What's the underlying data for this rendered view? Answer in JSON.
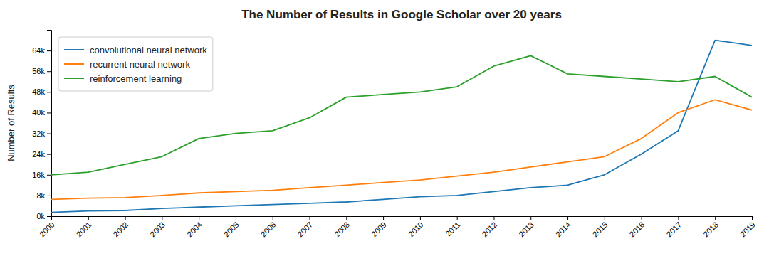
{
  "chart_data": {
    "type": "line",
    "title": "The Number of Results in Google Scholar over 20 years",
    "y_label": "Number of Results",
    "x": [
      2000,
      2001,
      2002,
      2003,
      2004,
      2005,
      2006,
      2007,
      2008,
      2009,
      2010,
      2011,
      2012,
      2013,
      2014,
      2015,
      2016,
      2017,
      2018,
      2019
    ],
    "series": [
      {
        "name": "convolutional neural network",
        "color": "#1f77b4",
        "values": [
          1500,
          2000,
          2200,
          3000,
          3500,
          4000,
          4500,
          5000,
          5500,
          6500,
          7500,
          8000,
          9500,
          11000,
          12000,
          16000,
          24000,
          33000,
          68000,
          66000
        ]
      },
      {
        "name": "recurrent neural network",
        "color": "#ff7f0e",
        "values": [
          6500,
          7000,
          7200,
          8000,
          9000,
          9500,
          10000,
          11000,
          12000,
          13000,
          14000,
          15500,
          17000,
          19000,
          21000,
          23000,
          30000,
          40000,
          45000,
          41000
        ]
      },
      {
        "name": "reinforcement learning",
        "color": "#2ca02c",
        "values": [
          16000,
          17000,
          20000,
          23000,
          30000,
          32000,
          33000,
          38000,
          46000,
          47000,
          48000,
          50000,
          58000,
          62000,
          55000,
          54000,
          53000,
          52000,
          54000,
          46000
        ]
      }
    ],
    "xlim": [
      2000,
      2019
    ],
    "xticks": [
      2000,
      2001,
      2002,
      2003,
      2004,
      2005,
      2006,
      2007,
      2008,
      2009,
      2010,
      2011,
      2012,
      2013,
      2014,
      2015,
      2016,
      2017,
      2018,
      2019
    ],
    "ylim": [
      0,
      72000
    ],
    "yticks": [
      {
        "value": 0,
        "label": "0k"
      },
      {
        "value": 8000,
        "label": "8k"
      },
      {
        "value": 16000,
        "label": "16k"
      },
      {
        "value": 24000,
        "label": "24k"
      },
      {
        "value": 32000,
        "label": "32k"
      },
      {
        "value": 40000,
        "label": "40k"
      },
      {
        "value": 48000,
        "label": "48k"
      },
      {
        "value": 56000,
        "label": "56k"
      },
      {
        "value": 64000,
        "label": "64k"
      }
    ],
    "legend": "upper left"
  }
}
